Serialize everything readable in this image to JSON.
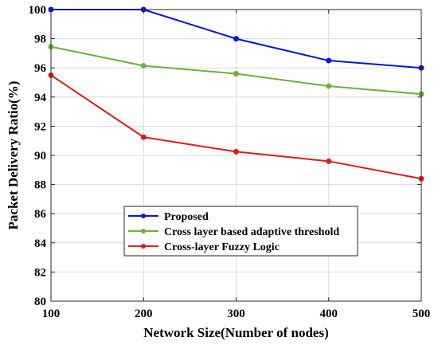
{
  "chart_data": {
    "type": "line",
    "title": "",
    "xlabel": "Network Size(Number of nodes)",
    "ylabel": "Packet Delivery Ratio(%)",
    "x": [
      100,
      200,
      300,
      400,
      500
    ],
    "xlim": [
      100,
      500
    ],
    "ylim": [
      80,
      100
    ],
    "xticks": [
      "100",
      "200",
      "300",
      "400",
      "500"
    ],
    "yticks": [
      "80",
      "82",
      "84",
      "86",
      "88",
      "90",
      "92",
      "94",
      "96",
      "98",
      "100"
    ],
    "grid": true,
    "legend_position": "lower-left",
    "series": [
      {
        "name": "Proposed",
        "color": "#0a14d6",
        "values": [
          100,
          100,
          98.0,
          96.5,
          96.0
        ]
      },
      {
        "name": "Cross layer based adaptive threshold",
        "color": "#6fae3f",
        "values": [
          97.45,
          96.15,
          95.6,
          94.75,
          94.2
        ]
      },
      {
        "name": "Cross-layer Fuzzy Logic",
        "color": "#e01b1b",
        "values": [
          95.5,
          91.25,
          90.25,
          89.6,
          88.4
        ]
      }
    ]
  }
}
